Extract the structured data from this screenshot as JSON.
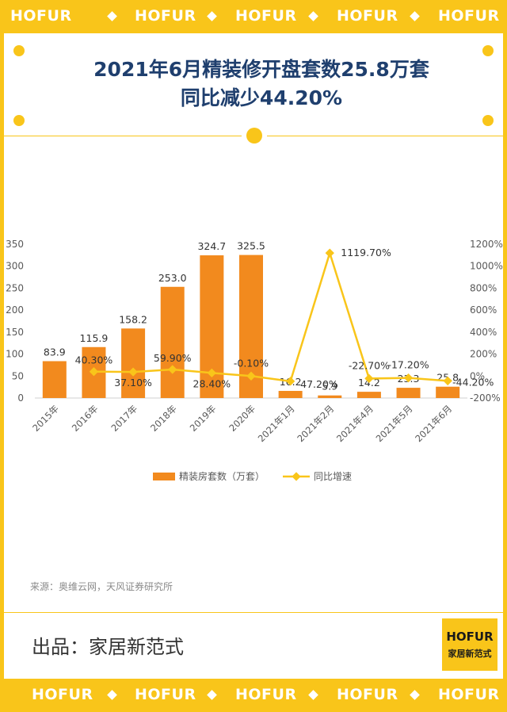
{
  "brand": {
    "name": "HOFUR",
    "logo_name": "家居新范式"
  },
  "title": {
    "line1": "2021年6月精装修开盘套数25.8万套",
    "line2": "同比减少44.20%"
  },
  "source": "来源：奥维云网，天风证券研究所",
  "producer": "出品：家居新范式",
  "colors": {
    "accent": "#f9c51a",
    "bar": "#f28a1e",
    "line": "#f9c51a",
    "title": "#1f3f6e"
  },
  "chart_data": {
    "type": "bar",
    "categories": [
      "2015年",
      "2016年",
      "2017年",
      "2018年",
      "2019年",
      "2020年",
      "2021年1月",
      "2021年2月",
      "2021年4月",
      "2021年5月",
      "2021年6月"
    ],
    "series": [
      {
        "name": "精装房套数（万套）",
        "type": "bar",
        "axis": "left",
        "values": [
          83.9,
          115.9,
          158.2,
          253.0,
          324.7,
          325.5,
          16.2,
          5.9,
          14.2,
          23.3,
          25.8
        ],
        "labels": [
          "83.9",
          "115.9",
          "158.2",
          "253.0",
          "324.7",
          "325.5",
          "16.2",
          "5.9",
          "14.2",
          "23.3",
          "25.8"
        ]
      },
      {
        "name": "同比增速",
        "type": "line",
        "axis": "right",
        "values": [
          null,
          40.3,
          37.1,
          59.9,
          28.4,
          -0.1,
          -47.2,
          1119.7,
          -22.7,
          -17.2,
          -44.2
        ],
        "labels": [
          "",
          "40.30%",
          "37.10%",
          "59.90%",
          "28.40%",
          "-0.10%",
          "-47.20%",
          "1119.70%",
          "-22.70%",
          "-17.20%",
          "-44.20%"
        ]
      }
    ],
    "yleft": {
      "range": [
        0,
        350
      ],
      "ticks": [
        0,
        50,
        100,
        150,
        200,
        250,
        300,
        350
      ],
      "tick_labels": [
        "0",
        "50",
        "100",
        "150",
        "200",
        "250",
        "300",
        "350"
      ]
    },
    "yright": {
      "range": [
        -200,
        1200
      ],
      "ticks": [
        -200,
        0,
        200,
        400,
        600,
        800,
        1000,
        1200
      ],
      "tick_labels": [
        "-200%",
        "0%",
        "200%",
        "400%",
        "600%",
        "800%",
        "1000%",
        "1200%"
      ]
    },
    "grid": false,
    "legend": "bottom"
  }
}
